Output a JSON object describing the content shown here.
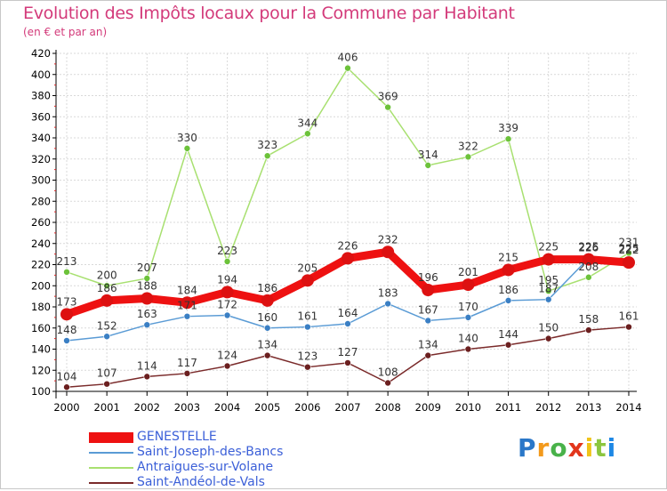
{
  "header": {
    "title": "Evolution des Impôts locaux pour la Commune par Habitant",
    "subtitle": "(en € et par an)"
  },
  "logo": {
    "text": "Proxiti",
    "colors": [
      "#2a77c8",
      "#f39a1c",
      "#49b24a",
      "#e2361c",
      "#f0c419",
      "#8cc63f",
      "#1e88e5"
    ]
  },
  "colors": {
    "grid": "#d9d9d9",
    "axis": "#000000",
    "tick_text": "#000000",
    "label_text": "#333333",
    "title": "#d33a7a",
    "legend_text": "#3b5fd8"
  },
  "chart_data": {
    "type": "line",
    "title": "Evolution des Impôts locaux pour la Commune par Habitant",
    "subtitle": "(en € et par an)",
    "x": [
      "2000",
      "2001",
      "2002",
      "2003",
      "2004",
      "2005",
      "2006",
      "2007",
      "2008",
      "2009",
      "2010",
      "2011",
      "2012",
      "2013",
      "2014"
    ],
    "ylim": [
      100,
      420
    ],
    "yticks": [
      100,
      120,
      140,
      160,
      180,
      200,
      220,
      240,
      260,
      280,
      300,
      320,
      340,
      360,
      380,
      400,
      420
    ],
    "grid": true,
    "legend_position": "bottom-left",
    "series": [
      {
        "name": "GENESTELLE",
        "color": "#ee1111",
        "width": 9,
        "marker": 7,
        "marker_color": "#dd1111",
        "values": [
          173,
          186,
          188,
          184,
          194,
          186,
          205,
          226,
          232,
          196,
          201,
          215,
          225,
          225,
          222
        ],
        "labels": [
          "173",
          "186",
          "188",
          "184",
          "194",
          "186",
          "205",
          "226",
          "232",
          "196",
          "201",
          "215",
          "225",
          "225",
          "222"
        ]
      },
      {
        "name": "Saint-Joseph-des-Bancs",
        "color": "#5a9bd5",
        "width": 1.5,
        "marker": 3.5,
        "marker_color": "#3a7fc4",
        "values": [
          148,
          152,
          163,
          171,
          172,
          160,
          161,
          164,
          183,
          167,
          170,
          186,
          187,
          226,
          225
        ],
        "labels": [
          "148",
          "152",
          "163",
          "171",
          "172",
          "160",
          "161",
          "164",
          "183",
          "167",
          "170",
          "186",
          "187",
          "226",
          "225"
        ]
      },
      {
        "name": "Antraigues-sur-Volane",
        "color": "#a8e070",
        "width": 1.5,
        "marker": 3.5,
        "marker_color": "#6cc23a",
        "values": [
          213,
          200,
          207,
          330,
          223,
          323,
          344,
          406,
          369,
          314,
          322,
          339,
          195,
          208,
          231
        ],
        "labels": [
          "213",
          "200",
          "207",
          "330",
          "223",
          "323",
          "344",
          "406",
          "369",
          "314",
          "322",
          "339",
          "195",
          "208",
          "231"
        ]
      },
      {
        "name": "Saint-Andéol-de-Vals",
        "color": "#7a2a2a",
        "width": 1.5,
        "marker": 3.5,
        "marker_color": "#6b1f1f",
        "values": [
          104,
          107,
          114,
          117,
          124,
          134,
          123,
          127,
          108,
          134,
          140,
          144,
          150,
          158,
          161
        ],
        "labels": [
          "104",
          "107",
          "114",
          "117",
          "124",
          "134",
          "123",
          "127",
          "108",
          "134",
          "140",
          "144",
          "150",
          "158",
          "161"
        ]
      }
    ]
  }
}
